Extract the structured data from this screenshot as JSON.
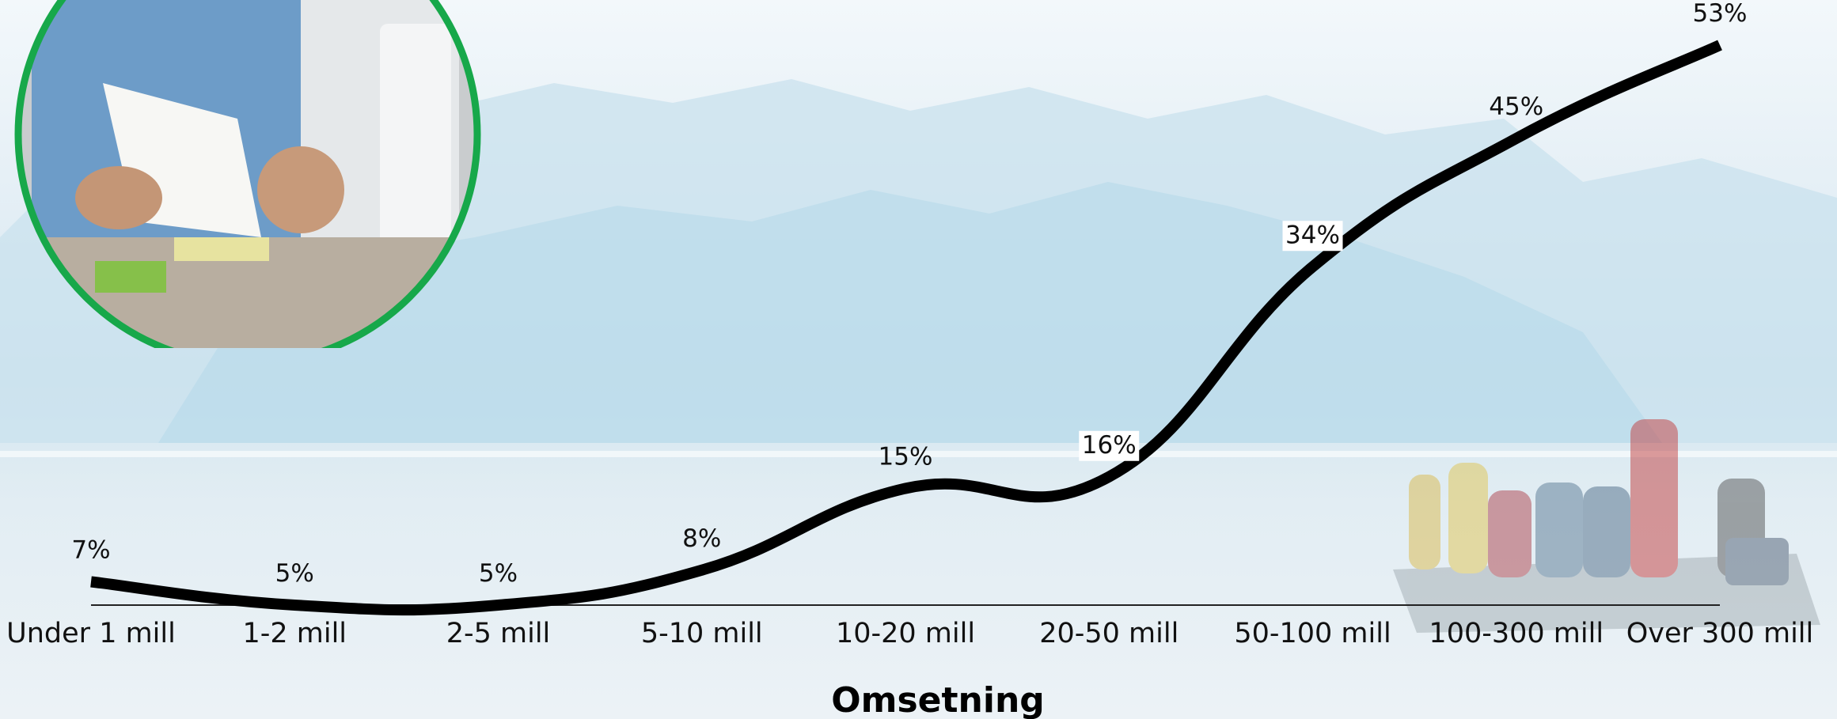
{
  "chart_data": {
    "type": "line",
    "smooth": true,
    "categories": [
      "Under 1 mill",
      "1-2 mill",
      "2-5 mill",
      "5-10 mill",
      "10-20 mill",
      "20-50 mill",
      "50-100 mill",
      "100-300 mill",
      "Over 300 mill"
    ],
    "values": [
      7,
      5,
      5,
      8,
      15,
      16,
      34,
      45,
      53
    ],
    "data_labels": [
      "7%",
      "5%",
      "5%",
      "8%",
      "15%",
      "16%",
      "34%",
      "45%",
      "53%"
    ],
    "xlabel": "Omsetning",
    "ylabel": "",
    "ylim": [
      5,
      53
    ],
    "grid": false,
    "line_color": "#000000",
    "label_highlight_color": "#ffffff"
  },
  "decoration": {
    "photo_ring_color": "#17a84a",
    "background_scene": "glacier-with-boat-photo"
  }
}
